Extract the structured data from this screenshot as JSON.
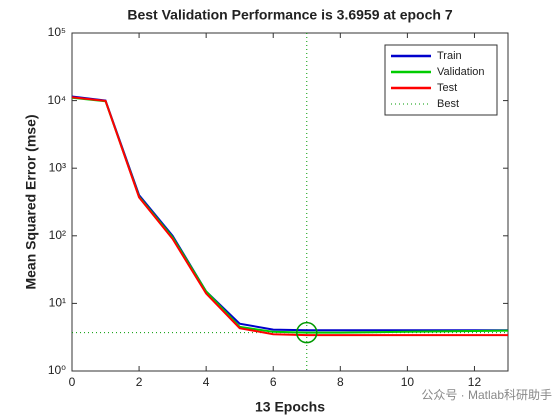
{
  "chart_data": {
    "type": "line",
    "title": "Best Validation Performance is 3.6959 at epoch 7",
    "x_label": "13 Epochs",
    "y_label": "Mean Squared Error  (mse)",
    "x": [
      0,
      1,
      2,
      3,
      4,
      5,
      6,
      7,
      8,
      9,
      10,
      11,
      12,
      13
    ],
    "series": [
      {
        "name": "Train",
        "color": "#0000cc",
        "values": [
          11500,
          10000,
          400,
          100,
          15,
          5,
          4.1,
          4.0,
          4.0,
          4.0,
          4.0,
          4.0,
          4.0,
          4.0
        ]
      },
      {
        "name": "Validation",
        "color": "#00cc00",
        "values": [
          11000,
          9800,
          380,
          95,
          15,
          4.5,
          3.8,
          3.6959,
          3.7,
          3.75,
          3.8,
          3.85,
          3.9,
          3.95
        ]
      },
      {
        "name": "Test",
        "color": "#ff0000",
        "values": [
          11200,
          9900,
          370,
          90,
          14,
          4.3,
          3.5,
          3.4,
          3.4,
          3.4,
          3.4,
          3.4,
          3.4,
          3.4
        ]
      }
    ],
    "best": {
      "name": "Best",
      "x": 7,
      "y": 3.6959,
      "color": "#009900"
    },
    "xlim": [
      0,
      13
    ],
    "xticks": [
      0,
      2,
      4,
      6,
      8,
      10,
      12
    ],
    "ylim": [
      1,
      100000
    ],
    "yscale": "log",
    "yticks": [
      {
        "value": 1,
        "label": "10⁰"
      },
      {
        "value": 10,
        "label": "10¹"
      },
      {
        "value": 100,
        "label": "10²"
      },
      {
        "value": 1000,
        "label": "10³"
      },
      {
        "value": 10000,
        "label": "10⁴"
      },
      {
        "value": 100000,
        "label": "10⁵"
      }
    ],
    "legend": "upper right",
    "watermark": "公众号 · Matlab科研助手"
  }
}
